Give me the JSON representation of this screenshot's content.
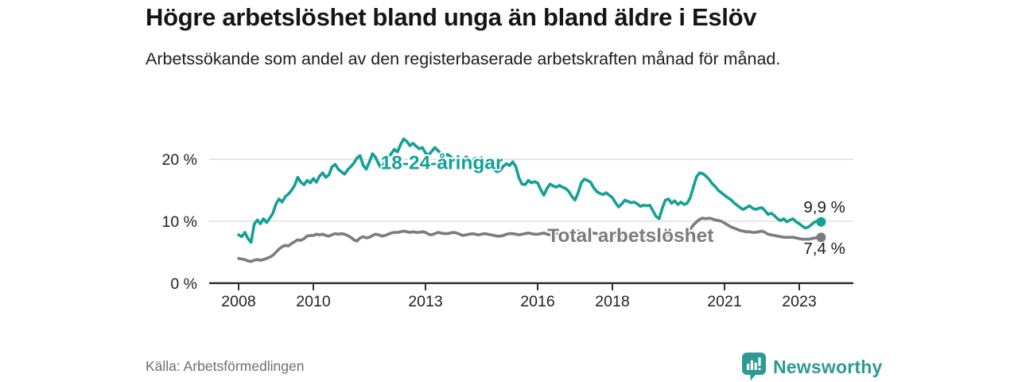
{
  "header": {
    "title": "Högre arbetslöshet bland unga än bland äldre i Eslöv",
    "subtitle": "Arbetssökande som andel av den registerbaserade arbetskraften månad för månad."
  },
  "footer": {
    "source": "Källa: Arbetsförmedlingen",
    "brand": "Newsworthy"
  },
  "colors": {
    "accent_teal": "#14a096",
    "series_gray": "#7b7b80",
    "grid": "#dbdbdb",
    "axis": "#2e2e2e",
    "text_dark": "#1a1a1a",
    "muted_text": "#6e6e72",
    "brand_teal": "#2d9a93"
  },
  "chart_data": {
    "type": "line",
    "title": "Högre arbetslöshet bland unga än bland äldre i Eslöv",
    "subtitle": "Arbetssökande som andel av den registerbaserade arbetskraften månad för månad.",
    "xlabel": "",
    "ylabel": "",
    "unit": "%",
    "ylim": [
      0,
      24
    ],
    "grid": "horizontal",
    "legend_position": "inline-labels",
    "x_start_year": 2008,
    "x_interval_months": 1,
    "x_end": "2023 (augusti)",
    "yticks": [
      {
        "value": 0,
        "label": "0 %"
      },
      {
        "value": 10,
        "label": "10 %"
      },
      {
        "value": 20,
        "label": "20 %"
      }
    ],
    "xticks": [
      {
        "year": 2008,
        "label": "2008"
      },
      {
        "year": 2010,
        "label": "2010"
      },
      {
        "year": 2013,
        "label": "2013"
      },
      {
        "year": 2016,
        "label": "2016"
      },
      {
        "year": 2018,
        "label": "2018"
      },
      {
        "year": 2021,
        "label": "2021"
      },
      {
        "year": 2023,
        "label": "2023"
      }
    ],
    "series": [
      {
        "name": "Total arbetslöshet",
        "color": "#7b7b80",
        "end_label": "7,4 %",
        "end_value": 7.4,
        "end_label_dy": 21,
        "inline_label": {
          "text": "Total arbetslöshet",
          "x_year": 2016.26,
          "value": 6.65
        },
        "values": [
          4.0,
          3.9,
          3.8,
          3.6,
          3.5,
          3.7,
          3.8,
          3.7,
          3.8,
          4.0,
          4.2,
          4.5,
          5.0,
          5.5,
          5.9,
          6.1,
          6.0,
          6.4,
          6.7,
          7.0,
          6.9,
          7.2,
          7.6,
          7.7,
          7.7,
          7.9,
          7.8,
          7.9,
          7.7,
          7.6,
          7.8,
          8.0,
          7.9,
          8.0,
          7.9,
          7.7,
          7.4,
          7.0,
          6.8,
          7.3,
          7.5,
          7.3,
          7.4,
          7.7,
          7.9,
          7.8,
          7.6,
          7.7,
          7.9,
          8.1,
          8.2,
          8.2,
          8.3,
          8.4,
          8.3,
          8.2,
          8.3,
          8.2,
          8.2,
          8.3,
          8.2,
          7.9,
          7.8,
          8.0,
          8.2,
          8.1,
          8.0,
          8.0,
          8.1,
          8.2,
          8.1,
          7.9,
          7.7,
          7.8,
          7.9,
          8.0,
          7.9,
          7.8,
          7.9,
          8.0,
          7.9,
          7.8,
          7.7,
          7.6,
          7.6,
          7.7,
          7.9,
          8.0,
          8.0,
          7.9,
          7.8,
          7.9,
          8.0,
          8.1,
          8.0,
          7.9,
          7.9,
          8.0,
          8.1,
          7.9,
          7.8,
          7.9,
          8.0,
          8.1,
          8.2,
          8.1,
          8.0,
          8.2,
          8.3,
          8.4,
          8.2,
          8.0,
          7.9,
          8.0,
          8.1,
          8.0,
          7.9,
          8.0,
          8.1,
          8.0,
          7.9,
          7.8,
          7.7,
          7.8,
          7.9,
          7.8,
          7.7,
          7.8,
          7.7,
          7.6,
          7.7,
          7.6,
          7.6,
          7.5,
          7.4,
          7.5,
          7.6,
          7.7,
          7.8,
          7.9,
          7.8,
          7.9,
          8.0,
          8.1,
          8.3,
          8.7,
          9.4,
          9.9,
          10.3,
          10.5,
          10.4,
          10.5,
          10.4,
          10.2,
          10.1,
          10.0,
          9.7,
          9.4,
          9.1,
          8.9,
          8.7,
          8.5,
          8.4,
          8.3,
          8.3,
          8.2,
          8.2,
          8.3,
          8.4,
          8.2,
          7.9,
          7.8,
          7.7,
          7.6,
          7.5,
          7.4,
          7.4,
          7.4,
          7.4,
          7.3,
          7.2,
          7.1,
          7.1,
          7.1,
          7.2,
          7.3,
          7.4,
          7.4
        ]
      },
      {
        "name": "18-24-åringar",
        "color": "#14a096",
        "end_label": "9,9 %",
        "end_value": 9.9,
        "end_label_dy": -12,
        "inline_label": {
          "text": "18-24-åringar",
          "x_year": 2011.8,
          "value": 18.4
        },
        "values": [
          7.8,
          7.5,
          8.2,
          7.2,
          6.6,
          9.5,
          10.2,
          9.6,
          10.4,
          9.8,
          10.5,
          11.3,
          12.8,
          13.6,
          13.1,
          14.0,
          14.4,
          15.0,
          15.8,
          17.1,
          16.3,
          15.9,
          16.6,
          16.2,
          16.9,
          16.3,
          17.3,
          17.8,
          17.1,
          17.5,
          18.8,
          19.2,
          18.4,
          18.0,
          17.6,
          18.3,
          18.8,
          19.4,
          20.2,
          20.6,
          19.0,
          18.4,
          19.6,
          20.9,
          20.3,
          19.2,
          18.4,
          19.8,
          20.4,
          20.9,
          21.6,
          21.2,
          22.4,
          23.3,
          22.9,
          22.2,
          22.6,
          22.1,
          21.7,
          21.9,
          21.0,
          20.7,
          21.3,
          21.9,
          21.4,
          20.9,
          20.4,
          20.8,
          20.5,
          19.9,
          20.2,
          19.8,
          20.0,
          20.4,
          20.1,
          19.7,
          20.2,
          19.9,
          20.3,
          19.8,
          19.4,
          18.9,
          18.3,
          18.0,
          18.2,
          18.9,
          19.3,
          19.0,
          19.6,
          18.8,
          17.0,
          16.0,
          15.9,
          16.6,
          16.2,
          16.4,
          16.2,
          15.1,
          14.2,
          15.3,
          16.0,
          15.7,
          15.5,
          15.8,
          15.5,
          15.3,
          14.8,
          14.0,
          13.4,
          14.6,
          16.2,
          16.8,
          16.6,
          16.3,
          15.4,
          14.8,
          14.5,
          14.3,
          14.6,
          14.2,
          13.8,
          13.0,
          12.3,
          12.8,
          13.4,
          13.2,
          13.0,
          13.1,
          12.8,
          12.4,
          12.6,
          12.5,
          12.6,
          11.7,
          10.8,
          10.4,
          12.1,
          13.4,
          13.6,
          12.9,
          13.3,
          12.7,
          13.1,
          12.7,
          12.9,
          13.8,
          15.5,
          17.2,
          17.8,
          17.7,
          17.3,
          16.8,
          16.1,
          15.6,
          15.0,
          14.6,
          14.2,
          13.8,
          13.5,
          13.0,
          12.6,
          12.2,
          11.9,
          12.2,
          12.5,
          12.1,
          11.9,
          12.1,
          12.2,
          11.7,
          11.1,
          11.3,
          10.9,
          10.4,
          10.1,
          10.4,
          9.9,
          10.2,
          10.4,
          9.9,
          9.6,
          9.2,
          8.9,
          9.1,
          9.5,
          9.9,
          10.1,
          9.9
        ]
      }
    ]
  }
}
